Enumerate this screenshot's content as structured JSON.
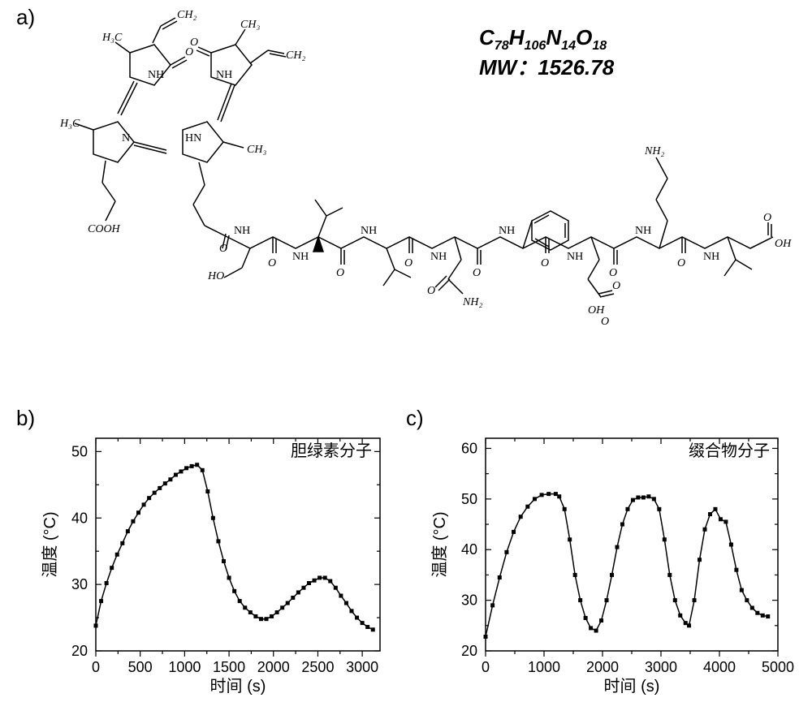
{
  "panel_a": {
    "label": "a)",
    "formula_line1_parts": [
      "C",
      "78",
      "H",
      "106",
      "N",
      "14",
      "O",
      "18"
    ],
    "formula_line2": "MW：1526.78",
    "structure": {
      "labels": {
        "CH3_positions": 4,
        "CH2_positions": 2,
        "atom_texts": [
          "H₃C",
          "CH₃",
          "CH₂",
          "CH₂",
          "CH₃",
          "H₃C",
          "CH₃",
          "O",
          "O",
          "NH",
          "NH",
          "N",
          "HN",
          "COOH",
          "HO",
          "NH",
          "NH",
          "NH",
          "NH",
          "NH",
          "NH",
          "NH",
          "NH₂",
          "NH₂",
          "OH",
          "O",
          "O",
          "O",
          "O",
          "O",
          "O",
          "O",
          "O",
          "O",
          "O",
          "O",
          "O",
          "OH"
        ]
      }
    }
  },
  "panel_b": {
    "label": "b)",
    "legend": "胆绿素分子",
    "x_label": "时间 (s)",
    "y_label": "温度 (°C)",
    "xlim": [
      0,
      3200
    ],
    "ylim": [
      20,
      52
    ],
    "xtick_step": 500,
    "xtick_labels": [
      "0",
      "500",
      "1000",
      "1500",
      "2000",
      "2500",
      "3000"
    ],
    "ytick_labels": [
      "20",
      "30",
      "40",
      "50"
    ],
    "ytick_minor": 2,
    "marker_size": 5,
    "line_width": 1.5,
    "series_color": "#000000",
    "background_color": "#ffffff",
    "frame": true,
    "data": [
      {
        "x": 0,
        "y": 23.8
      },
      {
        "x": 60,
        "y": 27.5
      },
      {
        "x": 120,
        "y": 30.2
      },
      {
        "x": 180,
        "y": 32.5
      },
      {
        "x": 240,
        "y": 34.5
      },
      {
        "x": 300,
        "y": 36.2
      },
      {
        "x": 360,
        "y": 38.0
      },
      {
        "x": 420,
        "y": 39.5
      },
      {
        "x": 480,
        "y": 40.8
      },
      {
        "x": 540,
        "y": 42.0
      },
      {
        "x": 600,
        "y": 43.0
      },
      {
        "x": 660,
        "y": 43.8
      },
      {
        "x": 720,
        "y": 44.5
      },
      {
        "x": 780,
        "y": 45.2
      },
      {
        "x": 840,
        "y": 45.8
      },
      {
        "x": 900,
        "y": 46.5
      },
      {
        "x": 960,
        "y": 47.0
      },
      {
        "x": 1020,
        "y": 47.5
      },
      {
        "x": 1080,
        "y": 47.8
      },
      {
        "x": 1140,
        "y": 48.0
      },
      {
        "x": 1200,
        "y": 47.2
      },
      {
        "x": 1260,
        "y": 44.0
      },
      {
        "x": 1320,
        "y": 40.0
      },
      {
        "x": 1380,
        "y": 36.5
      },
      {
        "x": 1440,
        "y": 33.5
      },
      {
        "x": 1500,
        "y": 31.0
      },
      {
        "x": 1560,
        "y": 29.0
      },
      {
        "x": 1620,
        "y": 27.5
      },
      {
        "x": 1680,
        "y": 26.5
      },
      {
        "x": 1740,
        "y": 25.8
      },
      {
        "x": 1800,
        "y": 25.2
      },
      {
        "x": 1860,
        "y": 24.8
      },
      {
        "x": 1920,
        "y": 24.8
      },
      {
        "x": 1980,
        "y": 25.2
      },
      {
        "x": 2040,
        "y": 25.8
      },
      {
        "x": 2100,
        "y": 26.5
      },
      {
        "x": 2160,
        "y": 27.2
      },
      {
        "x": 2220,
        "y": 28.0
      },
      {
        "x": 2280,
        "y": 28.8
      },
      {
        "x": 2340,
        "y": 29.5
      },
      {
        "x": 2400,
        "y": 30.2
      },
      {
        "x": 2460,
        "y": 30.6
      },
      {
        "x": 2520,
        "y": 31.0
      },
      {
        "x": 2580,
        "y": 31.0
      },
      {
        "x": 2640,
        "y": 30.5
      },
      {
        "x": 2700,
        "y": 29.5
      },
      {
        "x": 2760,
        "y": 28.3
      },
      {
        "x": 2820,
        "y": 27.2
      },
      {
        "x": 2880,
        "y": 26.0
      },
      {
        "x": 2940,
        "y": 25.0
      },
      {
        "x": 3000,
        "y": 24.2
      },
      {
        "x": 3060,
        "y": 23.6
      },
      {
        "x": 3120,
        "y": 23.2
      }
    ]
  },
  "panel_c": {
    "label": "c)",
    "legend": "缀合物分子",
    "x_label": "时间 (s)",
    "y_label": "温度 (°C)",
    "xlim": [
      0,
      5000
    ],
    "ylim": [
      20,
      62
    ],
    "xtick_step": 1000,
    "xtick_labels": [
      "0",
      "1000",
      "2000",
      "3000",
      "4000",
      "5000"
    ],
    "ytick_labels": [
      "20",
      "30",
      "40",
      "50",
      "60"
    ],
    "ytick_minor": 2,
    "marker_size": 5,
    "line_width": 1.5,
    "series_color": "#000000",
    "background_color": "#ffffff",
    "frame": true,
    "data": [
      {
        "x": 0,
        "y": 22.8
      },
      {
        "x": 120,
        "y": 29.0
      },
      {
        "x": 240,
        "y": 34.5
      },
      {
        "x": 360,
        "y": 39.5
      },
      {
        "x": 480,
        "y": 43.5
      },
      {
        "x": 600,
        "y": 46.5
      },
      {
        "x": 720,
        "y": 48.5
      },
      {
        "x": 840,
        "y": 50.0
      },
      {
        "x": 960,
        "y": 50.8
      },
      {
        "x": 1080,
        "y": 51.0
      },
      {
        "x": 1200,
        "y": 51.0
      },
      {
        "x": 1260,
        "y": 50.5
      },
      {
        "x": 1350,
        "y": 48.0
      },
      {
        "x": 1440,
        "y": 42.0
      },
      {
        "x": 1530,
        "y": 35.0
      },
      {
        "x": 1620,
        "y": 30.0
      },
      {
        "x": 1710,
        "y": 26.5
      },
      {
        "x": 1800,
        "y": 24.5
      },
      {
        "x": 1890,
        "y": 24.0
      },
      {
        "x": 1980,
        "y": 26.0
      },
      {
        "x": 2070,
        "y": 30.0
      },
      {
        "x": 2160,
        "y": 35.0
      },
      {
        "x": 2250,
        "y": 40.5
      },
      {
        "x": 2340,
        "y": 45.0
      },
      {
        "x": 2430,
        "y": 48.0
      },
      {
        "x": 2520,
        "y": 49.8
      },
      {
        "x": 2610,
        "y": 50.3
      },
      {
        "x": 2700,
        "y": 50.3
      },
      {
        "x": 2790,
        "y": 50.5
      },
      {
        "x": 2880,
        "y": 50.0
      },
      {
        "x": 2970,
        "y": 48.0
      },
      {
        "x": 3060,
        "y": 42.0
      },
      {
        "x": 3150,
        "y": 35.0
      },
      {
        "x": 3240,
        "y": 30.0
      },
      {
        "x": 3330,
        "y": 27.0
      },
      {
        "x": 3420,
        "y": 25.5
      },
      {
        "x": 3480,
        "y": 25.0
      },
      {
        "x": 3570,
        "y": 30.0
      },
      {
        "x": 3660,
        "y": 38.0
      },
      {
        "x": 3750,
        "y": 44.0
      },
      {
        "x": 3840,
        "y": 47.0
      },
      {
        "x": 3930,
        "y": 48.0
      },
      {
        "x": 4020,
        "y": 46.0
      },
      {
        "x": 4110,
        "y": 45.5
      },
      {
        "x": 4200,
        "y": 41.0
      },
      {
        "x": 4290,
        "y": 36.0
      },
      {
        "x": 4380,
        "y": 32.0
      },
      {
        "x": 4470,
        "y": 30.0
      },
      {
        "x": 4560,
        "y": 28.5
      },
      {
        "x": 4650,
        "y": 27.5
      },
      {
        "x": 4740,
        "y": 27.0
      },
      {
        "x": 4830,
        "y": 26.8
      }
    ]
  }
}
